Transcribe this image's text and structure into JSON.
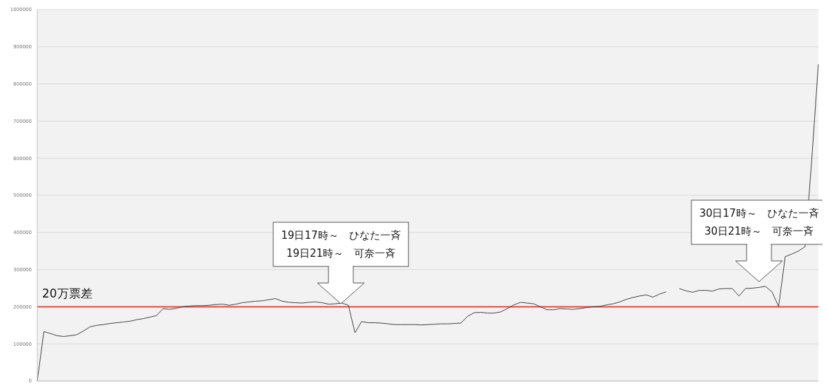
{
  "chart_data": {
    "type": "line",
    "categories": [
      null,
      null,
      null,
      null,
      null,
      null,
      null,
      null,
      null,
      null,
      null,
      null,
      null,
      null,
      null,
      null,
      null,
      null,
      null,
      null,
      null,
      null,
      null,
      null,
      null,
      null,
      null,
      null,
      null,
      null,
      null,
      null,
      null,
      null,
      null,
      null,
      null,
      null,
      null,
      null,
      null,
      null,
      null,
      null,
      null,
      null,
      null,
      null,
      null,
      null,
      null,
      null,
      null,
      null,
      null,
      null,
      null,
      null,
      null,
      null,
      null,
      null,
      null,
      null,
      null,
      null,
      null,
      null,
      null,
      null,
      null,
      null,
      null,
      null,
      null,
      null,
      null,
      null,
      null,
      null,
      null,
      null,
      null,
      null,
      null,
      null,
      null,
      null,
      null,
      null,
      null,
      null,
      null,
      null,
      null,
      null,
      null,
      null,
      null,
      null,
      null,
      null,
      null,
      null,
      null,
      null,
      null,
      null,
      null,
      null,
      null,
      null,
      null,
      null,
      null,
      null,
      null,
      null,
      null
    ],
    "series": [
      {
        "color": "#404040",
        "values": [
          0,
          133000,
          128000,
          122000,
          120000,
          122000,
          125000,
          135000,
          146000,
          150000,
          152000,
          155000,
          157000,
          159000,
          161000,
          165000,
          168000,
          172000,
          176000,
          195000,
          193000,
          196000,
          200000,
          202000,
          203000,
          203000,
          204000,
          206000,
          207000,
          204000,
          207000,
          211000,
          213000,
          215000,
          216000,
          219000,
          222000,
          215000,
          212000,
          211000,
          210000,
          212000,
          213000,
          211000,
          207000,
          208000,
          210000,
          204000,
          130000,
          160000,
          157000,
          157000,
          156000,
          154000,
          152000,
          152000,
          152000,
          152000,
          151000,
          152000,
          153000,
          154000,
          154000,
          155000,
          156000,
          174000,
          184000,
          185000,
          183000,
          183000,
          186000,
          195000,
          205000,
          212000,
          210000,
          208000,
          200000,
          192000,
          192000,
          195000,
          194000,
          193000,
          195000,
          198000,
          200000,
          201000,
          205000,
          208000,
          213000,
          220000,
          225000,
          229000,
          232000,
          226000,
          234000,
          240000,
          null,
          null,
          null,
          null,
          null,
          null,
          null,
          null,
          null,
          null,
          null,
          null,
          null,
          null,
          null,
          null,
          null,
          null,
          null,
          null,
          null,
          null,
          null
        ]
      },
      {
        "color": "#404040",
        "values": [
          null,
          null,
          null,
          null,
          null,
          null,
          null,
          null,
          null,
          null,
          null,
          null,
          null,
          null,
          null,
          null,
          null,
          null,
          null,
          null,
          null,
          null,
          null,
          null,
          null,
          null,
          null,
          null,
          null,
          null,
          null,
          null,
          null,
          null,
          null,
          null,
          null,
          null,
          null,
          null,
          null,
          null,
          null,
          null,
          null,
          null,
          null,
          null,
          null,
          null,
          null,
          null,
          null,
          null,
          null,
          null,
          null,
          null,
          null,
          null,
          null,
          null,
          null,
          null,
          null,
          null,
          null,
          null,
          null,
          null,
          null,
          null,
          null,
          null,
          null,
          null,
          null,
          null,
          null,
          null,
          null,
          null,
          null,
          null,
          null,
          null,
          null,
          null,
          null,
          null,
          null,
          null,
          null,
          null,
          null,
          null,
          null,
          249000,
          243000,
          239000,
          244000,
          244000,
          242000,
          248000,
          249000,
          249000,
          229000,
          249000,
          250000,
          252000,
          255000,
          240000,
          201000,
          335000,
          342000,
          350000,
          362000,
          595000,
          853000
        ]
      }
    ],
    "ylim": [
      0,
      1000000
    ],
    "yticks": [
      0,
      100000,
      200000,
      300000,
      400000,
      500000,
      600000,
      700000,
      800000,
      900000,
      1000000
    ],
    "tick_labels": "y",
    "grid": "y",
    "ref_lines": [
      {
        "axis": "y",
        "value": 200000,
        "label": "20万票差",
        "color": "#e8473f"
      }
    ],
    "annotations": [
      "19日17時～　ひなた一斉\n19日21時～　可奈一斉",
      "30日17時～　ひなた一斉\n30日21時～　可奈一斉"
    ]
  }
}
